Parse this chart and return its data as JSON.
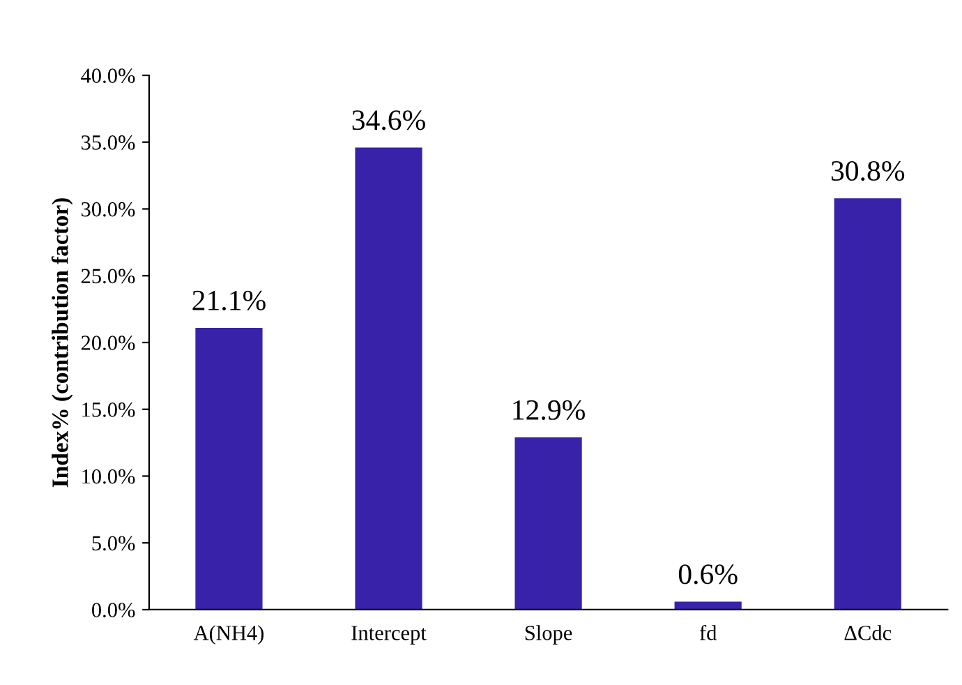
{
  "chart_data": {
    "type": "bar",
    "ylabel": "Index% (contribution factor)",
    "categories": [
      "A(NH4)",
      "Intercept",
      "Slope",
      "fd",
      "ΔCdc"
    ],
    "values": [
      21.1,
      34.6,
      12.9,
      0.6,
      30.8
    ],
    "value_labels": [
      "21.1%",
      "34.6%",
      "12.9%",
      "0.6%",
      "30.8%"
    ],
    "color": "#3922aa",
    "ylim": [
      0,
      40
    ],
    "yticks": [
      {
        "value": 0,
        "label": "0.0%"
      },
      {
        "value": 5,
        "label": "5.0%"
      },
      {
        "value": 10,
        "label": "10.0%"
      },
      {
        "value": 15,
        "label": "15.0%"
      },
      {
        "value": 20,
        "label": "20.0%"
      },
      {
        "value": 25,
        "label": "25.0%"
      },
      {
        "value": 30,
        "label": "30.0%"
      },
      {
        "value": 35,
        "label": "35.0%"
      },
      {
        "value": 40,
        "label": "40.0%"
      }
    ],
    "grid": false
  }
}
